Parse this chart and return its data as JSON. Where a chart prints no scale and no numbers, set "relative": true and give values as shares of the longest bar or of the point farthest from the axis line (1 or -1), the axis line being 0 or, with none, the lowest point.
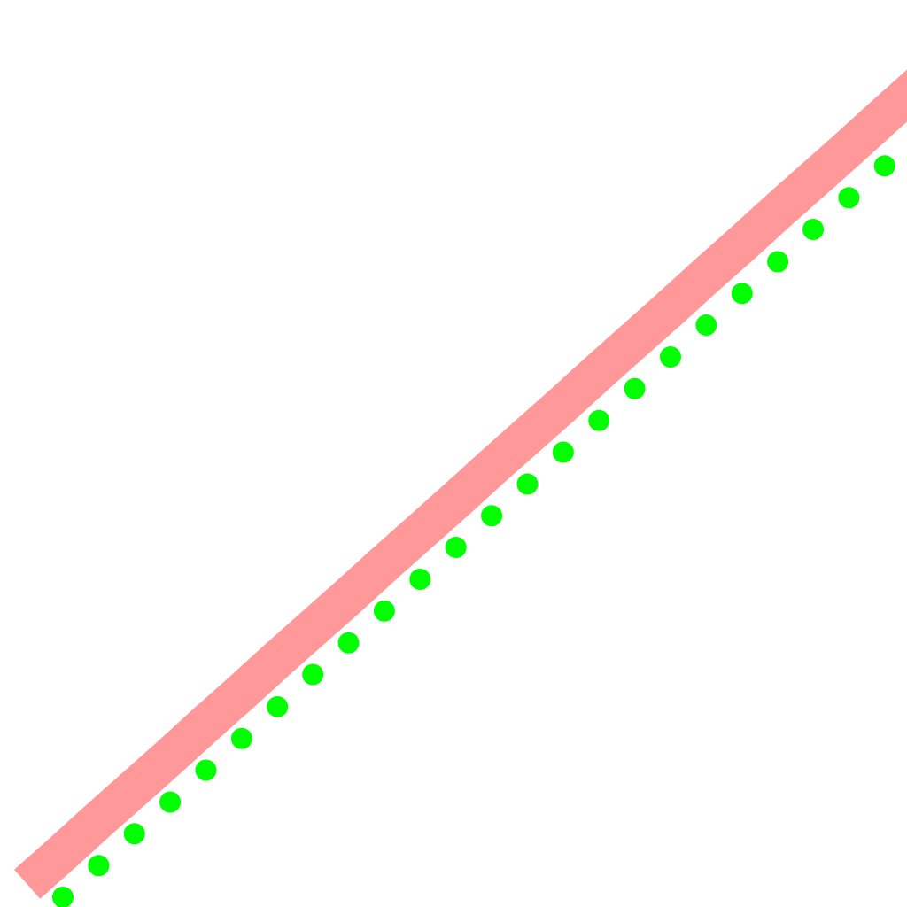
{
  "chart_data": {
    "type": "line",
    "relative": true,
    "grid": false,
    "categories": [
      null,
      null,
      null,
      null,
      null,
      null,
      null,
      null,
      null,
      null,
      null,
      null,
      null,
      null,
      null,
      null,
      null,
      null,
      null,
      null,
      null,
      null,
      null,
      null,
      null,
      null
    ],
    "series": [
      {
        "color": "#ff9999",
        "line_style": "solid",
        "values": [
          0.016,
          0.055,
          0.095,
          0.134,
          0.173,
          0.213,
          0.252,
          0.292,
          0.331,
          0.37,
          0.41,
          0.449,
          0.488,
          0.528,
          0.567,
          0.606,
          0.646,
          0.685,
          0.724,
          0.764,
          0.803,
          0.843,
          0.882,
          0.921,
          0.961,
          1.0
        ]
      },
      {
        "color": "#00ff00",
        "line_style": "dotted",
        "values": [
          null,
          0,
          0.039,
          0.078,
          0.117,
          0.156,
          0.195,
          0.234,
          0.274,
          0.313,
          0.352,
          0.391,
          0.43,
          0.469,
          0.508,
          0.547,
          0.586,
          0.625,
          0.664,
          0.703,
          0.742,
          0.781,
          0.821,
          0.86,
          0.899,
          null
        ]
      }
    ]
  }
}
